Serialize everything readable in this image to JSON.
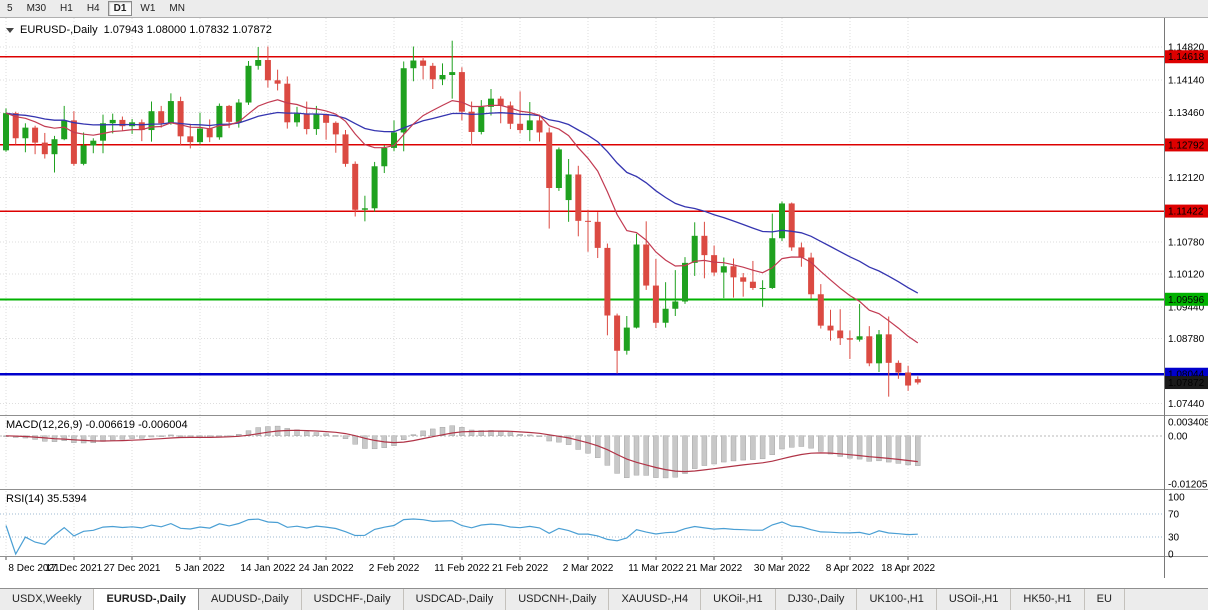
{
  "toolbar": {
    "timeframes": [
      "5",
      "M30",
      "H1",
      "H4",
      "D1",
      "W1",
      "MN"
    ],
    "active": "D1"
  },
  "chart": {
    "title": "EURUSD-,Daily",
    "ohlc": "1.07943 1.08000 1.07832 1.07872"
  },
  "tabs": {
    "items": [
      "USDX,Weekly",
      "EURUSD-,Daily",
      "AUDUSD-,Daily",
      "USDCHF-,Daily",
      "USDCAD-,Daily",
      "USDCNH-,Daily",
      "XAUUSD-,H4",
      "UKOil-,H1",
      "DJ30-,Daily",
      "UK100-,H1",
      "USOil-,H1",
      "HK50-,H1",
      "EU"
    ],
    "active": "EURUSD-,Daily"
  },
  "chart_data": {
    "type": "candlestick",
    "symbol": "EURUSD-,Daily",
    "timeframe": "D1",
    "axis": {
      "price_top": 1.1542,
      "price_bottom": 1.072,
      "y_ticks": [
        1.1482,
        1.1414,
        1.1346,
        1.1212,
        1.1078,
        1.1012,
        1.0944,
        1.0878,
        1.0744
      ],
      "badges": [
        {
          "text": "1.14618",
          "value": 1.14618,
          "color": "#dd0000"
        },
        {
          "text": "1.12792",
          "value": 1.12792,
          "color": "#dd0000"
        },
        {
          "text": "1.11422",
          "value": 1.11422,
          "color": "#dd0000"
        },
        {
          "text": "1.09596",
          "value": 1.09596,
          "color": "#00b200"
        },
        {
          "text": "1.08044",
          "value": 1.08044,
          "color": "#0000cc"
        },
        {
          "text": "1.07872",
          "value": 1.07872,
          "color": "#1a1a1a"
        }
      ]
    },
    "levels": [
      {
        "value": 1.14618,
        "color": "#dd0000",
        "width": 1.4
      },
      {
        "value": 1.12792,
        "color": "#dd0000",
        "width": 1.4
      },
      {
        "value": 1.11422,
        "color": "#dd0000",
        "width": 1.4
      },
      {
        "value": 1.09596,
        "color": "#00b200",
        "width": 2
      },
      {
        "value": 1.08044,
        "color": "#0000cc",
        "width": 2.6
      }
    ],
    "colors": {
      "up": "#1fa11f",
      "down": "#db4a42",
      "ma_fast": "#c23b52",
      "ma_slow": "#3535b0",
      "macd_hist": "#c8c8c8",
      "macd_signal": "#b03346",
      "rsi": "#4a9fd4"
    },
    "x_labels": [
      {
        "text": "8 Dec 2021",
        "i": 0
      },
      {
        "text": "17 Dec 2021",
        "i": 7
      },
      {
        "text": "27 Dec 2021",
        "i": 13
      },
      {
        "text": "5 Jan 2022",
        "i": 20
      },
      {
        "text": "14 Jan 2022",
        "i": 27
      },
      {
        "text": "24 Jan 2022",
        "i": 33
      },
      {
        "text": "2 Feb 2022",
        "i": 40
      },
      {
        "text": "11 Feb 2022",
        "i": 47
      },
      {
        "text": "21 Feb 2022",
        "i": 53
      },
      {
        "text": "2 Mar 2022",
        "i": 60
      },
      {
        "text": "11 Mar 2022",
        "i": 67
      },
      {
        "text": "21 Mar 2022",
        "i": 73
      },
      {
        "text": "30 Mar 2022",
        "i": 80
      },
      {
        "text": "8 Apr 2022",
        "i": 87
      },
      {
        "text": "18 Apr 2022",
        "i": 93
      }
    ],
    "candles": [
      [
        1.1268,
        1.1355,
        1.1265,
        1.1345
      ],
      [
        1.1345,
        1.1348,
        1.128,
        1.1293
      ],
      [
        1.1293,
        1.1324,
        1.1264,
        1.1315
      ],
      [
        1.1315,
        1.1319,
        1.126,
        1.1284
      ],
      [
        1.1284,
        1.1304,
        1.1251,
        1.126
      ],
      [
        1.126,
        1.1298,
        1.1222,
        1.1291
      ],
      [
        1.1291,
        1.136,
        1.1289,
        1.133
      ],
      [
        1.133,
        1.1349,
        1.1236,
        1.124
      ],
      [
        1.124,
        1.1305,
        1.1237,
        1.1278
      ],
      [
        1.1278,
        1.1293,
        1.1262,
        1.1288
      ],
      [
        1.1288,
        1.1342,
        1.1262,
        1.1324
      ],
      [
        1.1324,
        1.1344,
        1.1303,
        1.1331
      ],
      [
        1.1331,
        1.1338,
        1.1308,
        1.1318
      ],
      [
        1.1318,
        1.1333,
        1.1302,
        1.1326
      ],
      [
        1.1326,
        1.1332,
        1.1287,
        1.131
      ],
      [
        1.131,
        1.1369,
        1.1286,
        1.1349
      ],
      [
        1.1349,
        1.136,
        1.1315,
        1.1324
      ],
      [
        1.1324,
        1.1386,
        1.1321,
        1.137
      ],
      [
        1.137,
        1.1379,
        1.1279,
        1.1297
      ],
      [
        1.1297,
        1.1323,
        1.1272,
        1.1285
      ],
      [
        1.1285,
        1.1346,
        1.128,
        1.1313
      ],
      [
        1.1313,
        1.1332,
        1.1285,
        1.1295
      ],
      [
        1.1295,
        1.1365,
        1.129,
        1.136
      ],
      [
        1.136,
        1.1362,
        1.1314,
        1.1327
      ],
      [
        1.1327,
        1.1374,
        1.1315,
        1.1367
      ],
      [
        1.1367,
        1.1453,
        1.1362,
        1.1443
      ],
      [
        1.1443,
        1.1482,
        1.1435,
        1.1455
      ],
      [
        1.1455,
        1.1483,
        1.1398,
        1.1413
      ],
      [
        1.1413,
        1.1435,
        1.1392,
        1.1406
      ],
      [
        1.1406,
        1.1421,
        1.1313,
        1.1326
      ],
      [
        1.1326,
        1.1358,
        1.1317,
        1.1344
      ],
      [
        1.1344,
        1.1369,
        1.1301,
        1.1312
      ],
      [
        1.1312,
        1.136,
        1.13,
        1.1343
      ],
      [
        1.1343,
        1.1344,
        1.129,
        1.1325
      ],
      [
        1.1325,
        1.1328,
        1.1263,
        1.1301
      ],
      [
        1.1301,
        1.131,
        1.1234,
        1.124
      ],
      [
        1.124,
        1.1245,
        1.1131,
        1.1145
      ],
      [
        1.1145,
        1.1174,
        1.1121,
        1.1148
      ],
      [
        1.1148,
        1.1244,
        1.1141,
        1.1235
      ],
      [
        1.1235,
        1.1279,
        1.1221,
        1.1273
      ],
      [
        1.1273,
        1.133,
        1.1266,
        1.1305
      ],
      [
        1.1305,
        1.1452,
        1.1266,
        1.1438
      ],
      [
        1.1438,
        1.1483,
        1.1411,
        1.1454
      ],
      [
        1.1454,
        1.1459,
        1.1415,
        1.1443
      ],
      [
        1.1443,
        1.1449,
        1.1395,
        1.1415
      ],
      [
        1.1415,
        1.1448,
        1.1403,
        1.1424
      ],
      [
        1.1424,
        1.1495,
        1.1375,
        1.143
      ],
      [
        1.143,
        1.144,
        1.133,
        1.1348
      ],
      [
        1.1348,
        1.1369,
        1.1278,
        1.1306
      ],
      [
        1.1306,
        1.1372,
        1.1301,
        1.1358
      ],
      [
        1.1358,
        1.1395,
        1.134,
        1.1375
      ],
      [
        1.1375,
        1.138,
        1.1324,
        1.1361
      ],
      [
        1.1361,
        1.1369,
        1.1312,
        1.1323
      ],
      [
        1.1323,
        1.139,
        1.1303,
        1.131
      ],
      [
        1.131,
        1.1368,
        1.1287,
        1.133
      ],
      [
        1.133,
        1.1342,
        1.1286,
        1.1305
      ],
      [
        1.1305,
        1.1315,
        1.1106,
        1.119
      ],
      [
        1.119,
        1.1274,
        1.1184,
        1.127
      ],
      [
        1.1165,
        1.125,
        1.112,
        1.1218
      ],
      [
        1.1218,
        1.1236,
        1.109,
        1.1122
      ],
      [
        1.1122,
        1.1145,
        1.1058,
        1.112
      ],
      [
        1.112,
        1.114,
        1.1045,
        1.1066
      ],
      [
        1.1066,
        1.1075,
        1.0885,
        1.0926
      ],
      [
        1.0926,
        1.093,
        1.0806,
        1.0853
      ],
      [
        1.0853,
        1.0925,
        1.0845,
        1.0901
      ],
      [
        1.0901,
        1.1095,
        1.0899,
        1.1073
      ],
      [
        1.1073,
        1.1121,
        1.0979,
        1.0988
      ],
      [
        1.0988,
        1.1043,
        1.09,
        1.0911
      ],
      [
        1.0911,
        1.0995,
        1.0901,
        1.094
      ],
      [
        1.094,
        1.102,
        1.0925,
        1.0955
      ],
      [
        1.0955,
        1.1047,
        1.095,
        1.1035
      ],
      [
        1.1035,
        1.1119,
        1.1008,
        1.1091
      ],
      [
        1.1091,
        1.112,
        1.1003,
        1.1051
      ],
      [
        1.1051,
        1.1071,
        1.1008,
        1.1015
      ],
      [
        1.1015,
        1.1046,
        1.0962,
        1.1028
      ],
      [
        1.1028,
        1.1044,
        1.0963,
        1.1005
      ],
      [
        1.1005,
        1.1014,
        1.0965,
        1.0996
      ],
      [
        1.0996,
        1.1039,
        1.0979,
        1.0983
      ],
      [
        1.0983,
        1.0999,
        1.0944,
        1.0983
      ],
      [
        1.0983,
        1.1137,
        1.0981,
        1.1086
      ],
      [
        1.1086,
        1.1162,
        1.108,
        1.1158
      ],
      [
        1.1158,
        1.116,
        1.106,
        1.1067
      ],
      [
        1.1067,
        1.1077,
        1.1027,
        1.1046
      ],
      [
        1.1046,
        1.1056,
        1.0961,
        1.097
      ],
      [
        1.097,
        1.0991,
        1.0899,
        1.0905
      ],
      [
        1.0905,
        1.0938,
        1.0874,
        1.0895
      ],
      [
        1.0895,
        1.0939,
        1.0865,
        1.0879
      ],
      [
        1.0879,
        1.0895,
        1.0836,
        1.0876
      ],
      [
        1.0876,
        1.095,
        1.0872,
        1.0883
      ],
      [
        1.0883,
        1.0904,
        1.0821,
        1.0827
      ],
      [
        1.0827,
        1.0896,
        1.0809,
        1.0887
      ],
      [
        1.0887,
        1.0924,
        1.0758,
        1.0828
      ],
      [
        1.0828,
        1.0833,
        1.0795,
        1.0808
      ],
      [
        1.0808,
        1.0822,
        1.077,
        1.0781
      ],
      [
        1.07943,
        1.08,
        1.07832,
        1.07872
      ]
    ],
    "ma": {
      "fast_period": 13,
      "slow_period": 34
    },
    "macd": {
      "label": "MACD(12,26,9) -0.006619 -0.006004",
      "fast": 12,
      "slow": 26,
      "signal": 9,
      "range_top": 0.0047,
      "range_bottom": -0.0133,
      "ticks": [
        {
          "text": "0.003408",
          "value": 0.003408
        },
        {
          "text": "0.00",
          "value": 0
        },
        {
          "text": "-0.012058",
          "value": -0.012058
        }
      ]
    },
    "rsi": {
      "label": "RSI(14) 35.5394",
      "period": 14,
      "value": 35.5394,
      "range_top": 110.5,
      "range_bottom": -3.5,
      "ticks": [
        {
          "text": "100",
          "value": 100
        },
        {
          "text": "70",
          "value": 70
        },
        {
          "text": "30",
          "value": 30
        },
        {
          "text": "0",
          "value": 0
        }
      ]
    }
  }
}
